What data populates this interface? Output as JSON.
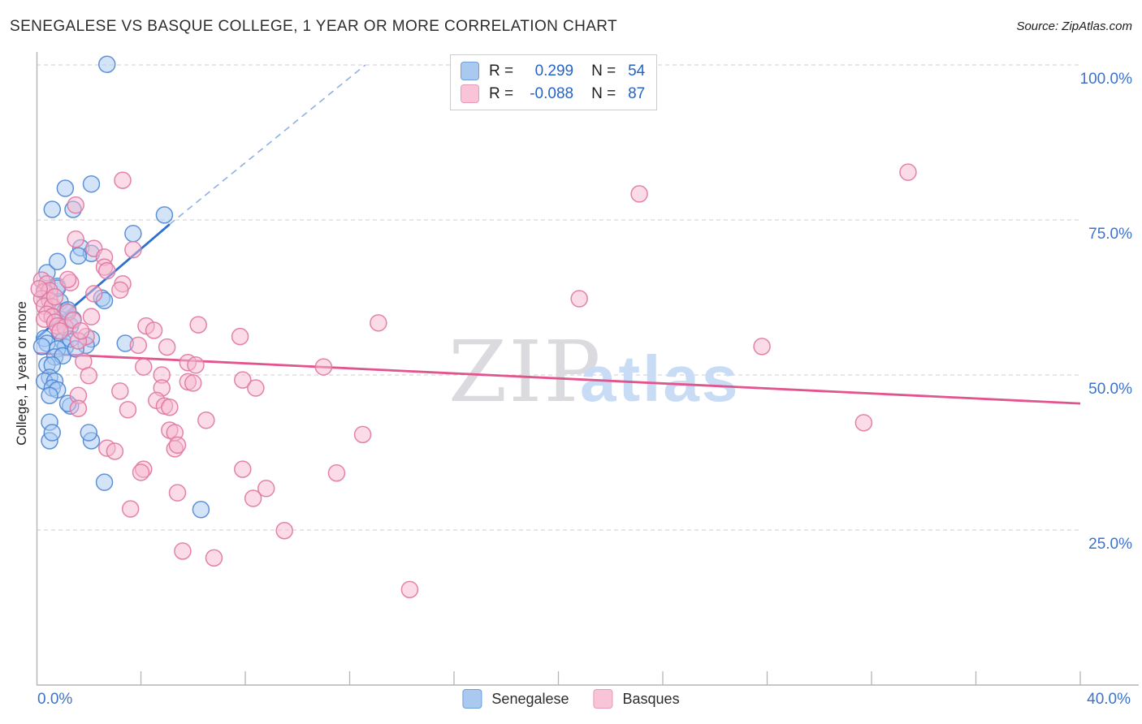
{
  "header": {
    "title": "SENEGALESE VS BASQUE COLLEGE, 1 YEAR OR MORE CORRELATION CHART",
    "source": "Source: ZipAtlas.com"
  },
  "legend": {
    "rows": [
      {
        "r_label": "R =",
        "r_value": "0.299",
        "n_label": "N =",
        "n_value": "54"
      },
      {
        "r_label": "R =",
        "r_value": "-0.088",
        "n_label": "N =",
        "n_value": "87"
      }
    ]
  },
  "watermark": {
    "part1": "ZIP",
    "part2": "atlas"
  },
  "colors": {
    "blue_fill": "#a8c9f4",
    "blue_stroke": "#4f86d2",
    "pink_fill": "#f5b8d0",
    "pink_stroke": "#e0779f",
    "blue_trend": "#2f6fce",
    "blue_trend_dashed": "#8fb0e0",
    "pink_trend": "#e2548c",
    "axis": "#b5b5b5",
    "grid": "#cdcdcd",
    "tick_label": "#3e72c8"
  },
  "chart_data": {
    "type": "scatter",
    "title": "SENEGALESE VS BASQUE COLLEGE, 1 YEAR OR MORE CORRELATION CHART",
    "xlabel": "",
    "ylabel": "College, 1 year or more",
    "x_axis": {
      "min": 0,
      "max": 40,
      "tick_interval": 4,
      "edge_labels": [
        "0.0%",
        "40.0%"
      ]
    },
    "y_axis": {
      "min": 0,
      "max": 100,
      "gridlines_pct": [
        25,
        50,
        75,
        100
      ],
      "tick_labels": [
        "25.0%",
        "50.0%",
        "75.0%",
        "100.0%"
      ],
      "label": "College, 1 year or more"
    },
    "grid": true,
    "legend_position": "bottom-center",
    "series": [
      {
        "name": "Senegalese",
        "R": 0.299,
        "N": 54,
        "points": [
          [
            2.7,
            100.1
          ],
          [
            1.1,
            80.1
          ],
          [
            2.1,
            80.8
          ],
          [
            4.9,
            75.8
          ],
          [
            0.6,
            76.7
          ],
          [
            1.4,
            76.7
          ],
          [
            3.7,
            72.8
          ],
          [
            2.5,
            62.4
          ],
          [
            3.4,
            55.1
          ],
          [
            2.6,
            32.7
          ],
          [
            0.5,
            39.4
          ],
          [
            2.1,
            39.4
          ],
          [
            6.3,
            28.3
          ],
          [
            2.0,
            40.7
          ],
          [
            0.8,
            64.3
          ],
          [
            0.9,
            61.8
          ],
          [
            1.1,
            60.3
          ],
          [
            0.9,
            59.0
          ],
          [
            1.3,
            57.9
          ],
          [
            1.4,
            59.0
          ],
          [
            2.1,
            55.8
          ],
          [
            0.9,
            56.8
          ],
          [
            0.3,
            55.9
          ],
          [
            0.4,
            55.1
          ],
          [
            0.2,
            54.6
          ],
          [
            1.0,
            55.5
          ],
          [
            1.1,
            54.5
          ],
          [
            0.8,
            54.2
          ],
          [
            0.7,
            52.9
          ],
          [
            1.0,
            53.1
          ],
          [
            0.4,
            51.6
          ],
          [
            0.6,
            51.6
          ],
          [
            0.5,
            49.6
          ],
          [
            0.3,
            49.0
          ],
          [
            0.7,
            49.0
          ],
          [
            0.6,
            47.9
          ],
          [
            0.8,
            47.6
          ],
          [
            0.5,
            46.7
          ],
          [
            1.3,
            45.0
          ],
          [
            1.2,
            45.4
          ],
          [
            0.5,
            42.4
          ],
          [
            0.6,
            40.7
          ],
          [
            1.7,
            70.5
          ],
          [
            2.1,
            69.6
          ],
          [
            1.6,
            69.2
          ],
          [
            2.6,
            62.0
          ],
          [
            0.8,
            64.0
          ],
          [
            0.3,
            63.6
          ],
          [
            0.4,
            66.5
          ],
          [
            0.8,
            68.3
          ],
          [
            1.2,
            60.5
          ],
          [
            1.3,
            55.8
          ],
          [
            1.9,
            54.8
          ],
          [
            1.5,
            54.2
          ]
        ]
      },
      {
        "name": "Basques",
        "R": -0.088,
        "N": 87,
        "points": [
          [
            33.4,
            82.7
          ],
          [
            23.1,
            79.2
          ],
          [
            20.8,
            62.3
          ],
          [
            27.8,
            54.6
          ],
          [
            31.7,
            42.3
          ],
          [
            13.1,
            58.4
          ],
          [
            11.0,
            51.3
          ],
          [
            12.5,
            40.4
          ],
          [
            14.3,
            15.4
          ],
          [
            11.5,
            34.2
          ],
          [
            9.5,
            24.9
          ],
          [
            8.8,
            31.7
          ],
          [
            8.3,
            30.1
          ],
          [
            7.9,
            34.8
          ],
          [
            6.8,
            20.5
          ],
          [
            5.6,
            21.6
          ],
          [
            5.4,
            31.0
          ],
          [
            4.1,
            34.8
          ],
          [
            5.3,
            38.1
          ],
          [
            3.6,
            28.4
          ],
          [
            4.0,
            34.3
          ],
          [
            2.7,
            38.2
          ],
          [
            3.0,
            37.7
          ],
          [
            3.3,
            81.4
          ],
          [
            1.5,
            77.4
          ],
          [
            1.5,
            71.9
          ],
          [
            3.3,
            64.7
          ],
          [
            3.7,
            70.2
          ],
          [
            3.2,
            63.7
          ],
          [
            2.2,
            63.1
          ],
          [
            6.2,
            58.1
          ],
          [
            7.8,
            56.2
          ],
          [
            5.0,
            54.5
          ],
          [
            4.2,
            57.9
          ],
          [
            4.5,
            57.2
          ],
          [
            3.9,
            54.8
          ],
          [
            4.1,
            51.3
          ],
          [
            5.8,
            52.0
          ],
          [
            6.1,
            51.6
          ],
          [
            4.8,
            50.0
          ],
          [
            5.8,
            48.9
          ],
          [
            6.0,
            48.7
          ],
          [
            7.9,
            49.2
          ],
          [
            8.4,
            47.9
          ],
          [
            4.8,
            47.9
          ],
          [
            4.6,
            45.9
          ],
          [
            4.9,
            45.0
          ],
          [
            5.1,
            44.8
          ],
          [
            6.5,
            42.7
          ],
          [
            5.1,
            41.1
          ],
          [
            5.3,
            40.7
          ],
          [
            5.4,
            38.7
          ],
          [
            0.2,
            65.3
          ],
          [
            0.4,
            64.7
          ],
          [
            0.3,
            63.4
          ],
          [
            0.5,
            63.6
          ],
          [
            0.2,
            62.3
          ],
          [
            0.5,
            62.0
          ],
          [
            0.3,
            61.1
          ],
          [
            0.6,
            61.0
          ],
          [
            0.4,
            59.8
          ],
          [
            0.6,
            59.4
          ],
          [
            0.3,
            59.0
          ],
          [
            0.7,
            58.5
          ],
          [
            0.8,
            57.9
          ],
          [
            1.3,
            64.9
          ],
          [
            1.2,
            60.1
          ],
          [
            1.1,
            57.7
          ],
          [
            2.1,
            59.4
          ],
          [
            1.9,
            56.2
          ],
          [
            1.6,
            55.5
          ],
          [
            1.6,
            46.7
          ],
          [
            1.6,
            44.6
          ],
          [
            1.8,
            52.2
          ],
          [
            2.0,
            49.9
          ],
          [
            2.2,
            70.4
          ],
          [
            2.6,
            69.0
          ],
          [
            2.6,
            67.4
          ],
          [
            2.7,
            66.8
          ],
          [
            1.2,
            65.4
          ],
          [
            3.2,
            47.4
          ],
          [
            3.5,
            44.4
          ],
          [
            0.1,
            63.9
          ],
          [
            0.7,
            62.6
          ],
          [
            0.9,
            57.1
          ],
          [
            1.4,
            58.8
          ],
          [
            1.7,
            57.1
          ]
        ]
      }
    ],
    "trend_lines": [
      {
        "series": "Senegalese",
        "style": "solid",
        "from": [
          0,
          55.9
        ],
        "to": [
          5.1,
          74.3
        ]
      },
      {
        "series": "Senegalese",
        "style": "dashed",
        "from": [
          5.1,
          74.3
        ],
        "to": [
          12.6,
          100.0
        ]
      },
      {
        "series": "Basques",
        "style": "solid",
        "from": [
          0,
          53.5
        ],
        "to": [
          40,
          45.4
        ]
      }
    ]
  }
}
